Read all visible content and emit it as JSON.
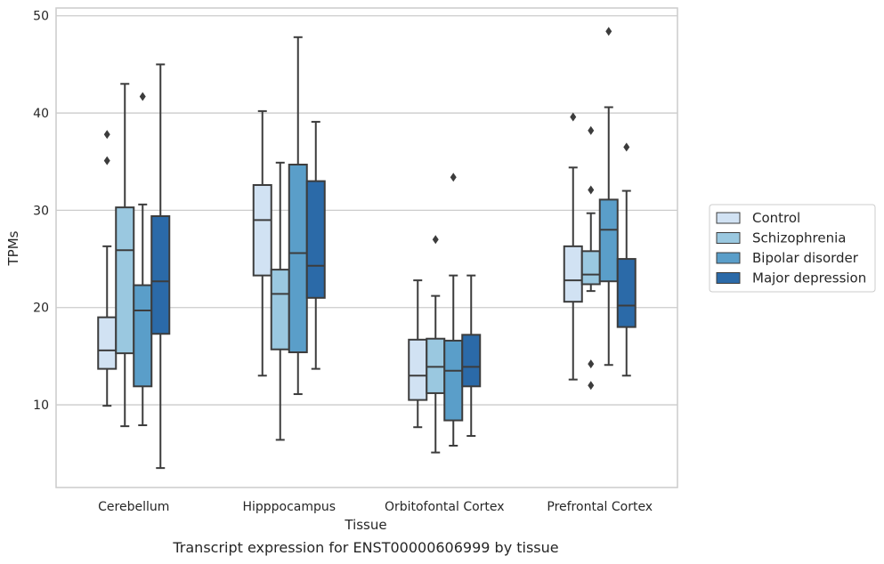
{
  "chart_data": {
    "type": "box",
    "xlabel": "Tissue",
    "ylabel": "TPMs",
    "caption": "Transcript expression for ENST00000606999 by tissue",
    "ylim": [
      1.5,
      50.8
    ],
    "yticks": [
      10,
      20,
      30,
      40,
      50
    ],
    "grid": "horizontal",
    "legend_position": "right",
    "categories": [
      "Cerebellum",
      "Hipppocampus",
      "Orbitofontal Cortex",
      "Prefrontal Cortex"
    ],
    "series": [
      {
        "name": "Control",
        "color": "#d1e2f3",
        "boxes": [
          {
            "whisker_low": 9.9,
            "q1": 13.7,
            "median": 15.6,
            "q3": 19.0,
            "whisker_high": 26.3,
            "outliers": [
              35.1,
              37.8
            ]
          },
          {
            "whisker_low": 13.0,
            "q1": 23.3,
            "median": 29.0,
            "q3": 32.6,
            "whisker_high": 40.2,
            "outliers": []
          },
          {
            "whisker_low": 7.7,
            "q1": 10.5,
            "median": 13.0,
            "q3": 16.7,
            "whisker_high": 22.8,
            "outliers": []
          },
          {
            "whisker_low": 12.6,
            "q1": 20.6,
            "median": 22.8,
            "q3": 26.3,
            "whisker_high": 34.4,
            "outliers": [
              39.6
            ]
          }
        ]
      },
      {
        "name": "Schizophrenia",
        "color": "#9ac8e0",
        "boxes": [
          {
            "whisker_low": 7.8,
            "q1": 15.3,
            "median": 25.9,
            "q3": 30.3,
            "whisker_high": 43.0,
            "outliers": []
          },
          {
            "whisker_low": 6.4,
            "q1": 15.7,
            "median": 21.4,
            "q3": 23.9,
            "whisker_high": 34.9,
            "outliers": []
          },
          {
            "whisker_low": 5.1,
            "q1": 11.2,
            "median": 13.9,
            "q3": 16.8,
            "whisker_high": 21.2,
            "outliers": [
              27.0
            ]
          },
          {
            "whisker_low": 21.7,
            "q1": 22.4,
            "median": 23.4,
            "q3": 25.8,
            "whisker_high": 29.7,
            "outliers": [
              38.2,
              32.1,
              14.2,
              12.0
            ]
          }
        ]
      },
      {
        "name": "Bipolar disorder",
        "color": "#5a9ec9",
        "boxes": [
          {
            "whisker_low": 7.9,
            "q1": 11.9,
            "median": 19.7,
            "q3": 22.3,
            "whisker_high": 30.6,
            "outliers": [
              41.7
            ]
          },
          {
            "whisker_low": 11.1,
            "q1": 15.4,
            "median": 25.6,
            "q3": 34.7,
            "whisker_high": 47.8,
            "outliers": []
          },
          {
            "whisker_low": 5.8,
            "q1": 8.4,
            "median": 13.5,
            "q3": 16.6,
            "whisker_high": 23.3,
            "outliers": [
              33.4
            ]
          },
          {
            "whisker_low": 14.1,
            "q1": 22.7,
            "median": 28.0,
            "q3": 31.1,
            "whisker_high": 40.6,
            "outliers": [
              48.4
            ]
          }
        ]
      },
      {
        "name": "Major depression",
        "color": "#2b6aa8",
        "boxes": [
          {
            "whisker_low": 3.5,
            "q1": 17.3,
            "median": 22.7,
            "q3": 29.4,
            "whisker_high": 45.0,
            "outliers": []
          },
          {
            "whisker_low": 13.7,
            "q1": 21.0,
            "median": 24.3,
            "q3": 33.0,
            "whisker_high": 39.1,
            "outliers": []
          },
          {
            "whisker_low": 6.8,
            "q1": 11.9,
            "median": 13.9,
            "q3": 17.2,
            "whisker_high": 23.3,
            "outliers": []
          },
          {
            "whisker_low": 13.0,
            "q1": 18.0,
            "median": 20.2,
            "q3": 25.0,
            "whisker_high": 32.0,
            "outliers": [
              36.5
            ]
          }
        ]
      }
    ]
  }
}
